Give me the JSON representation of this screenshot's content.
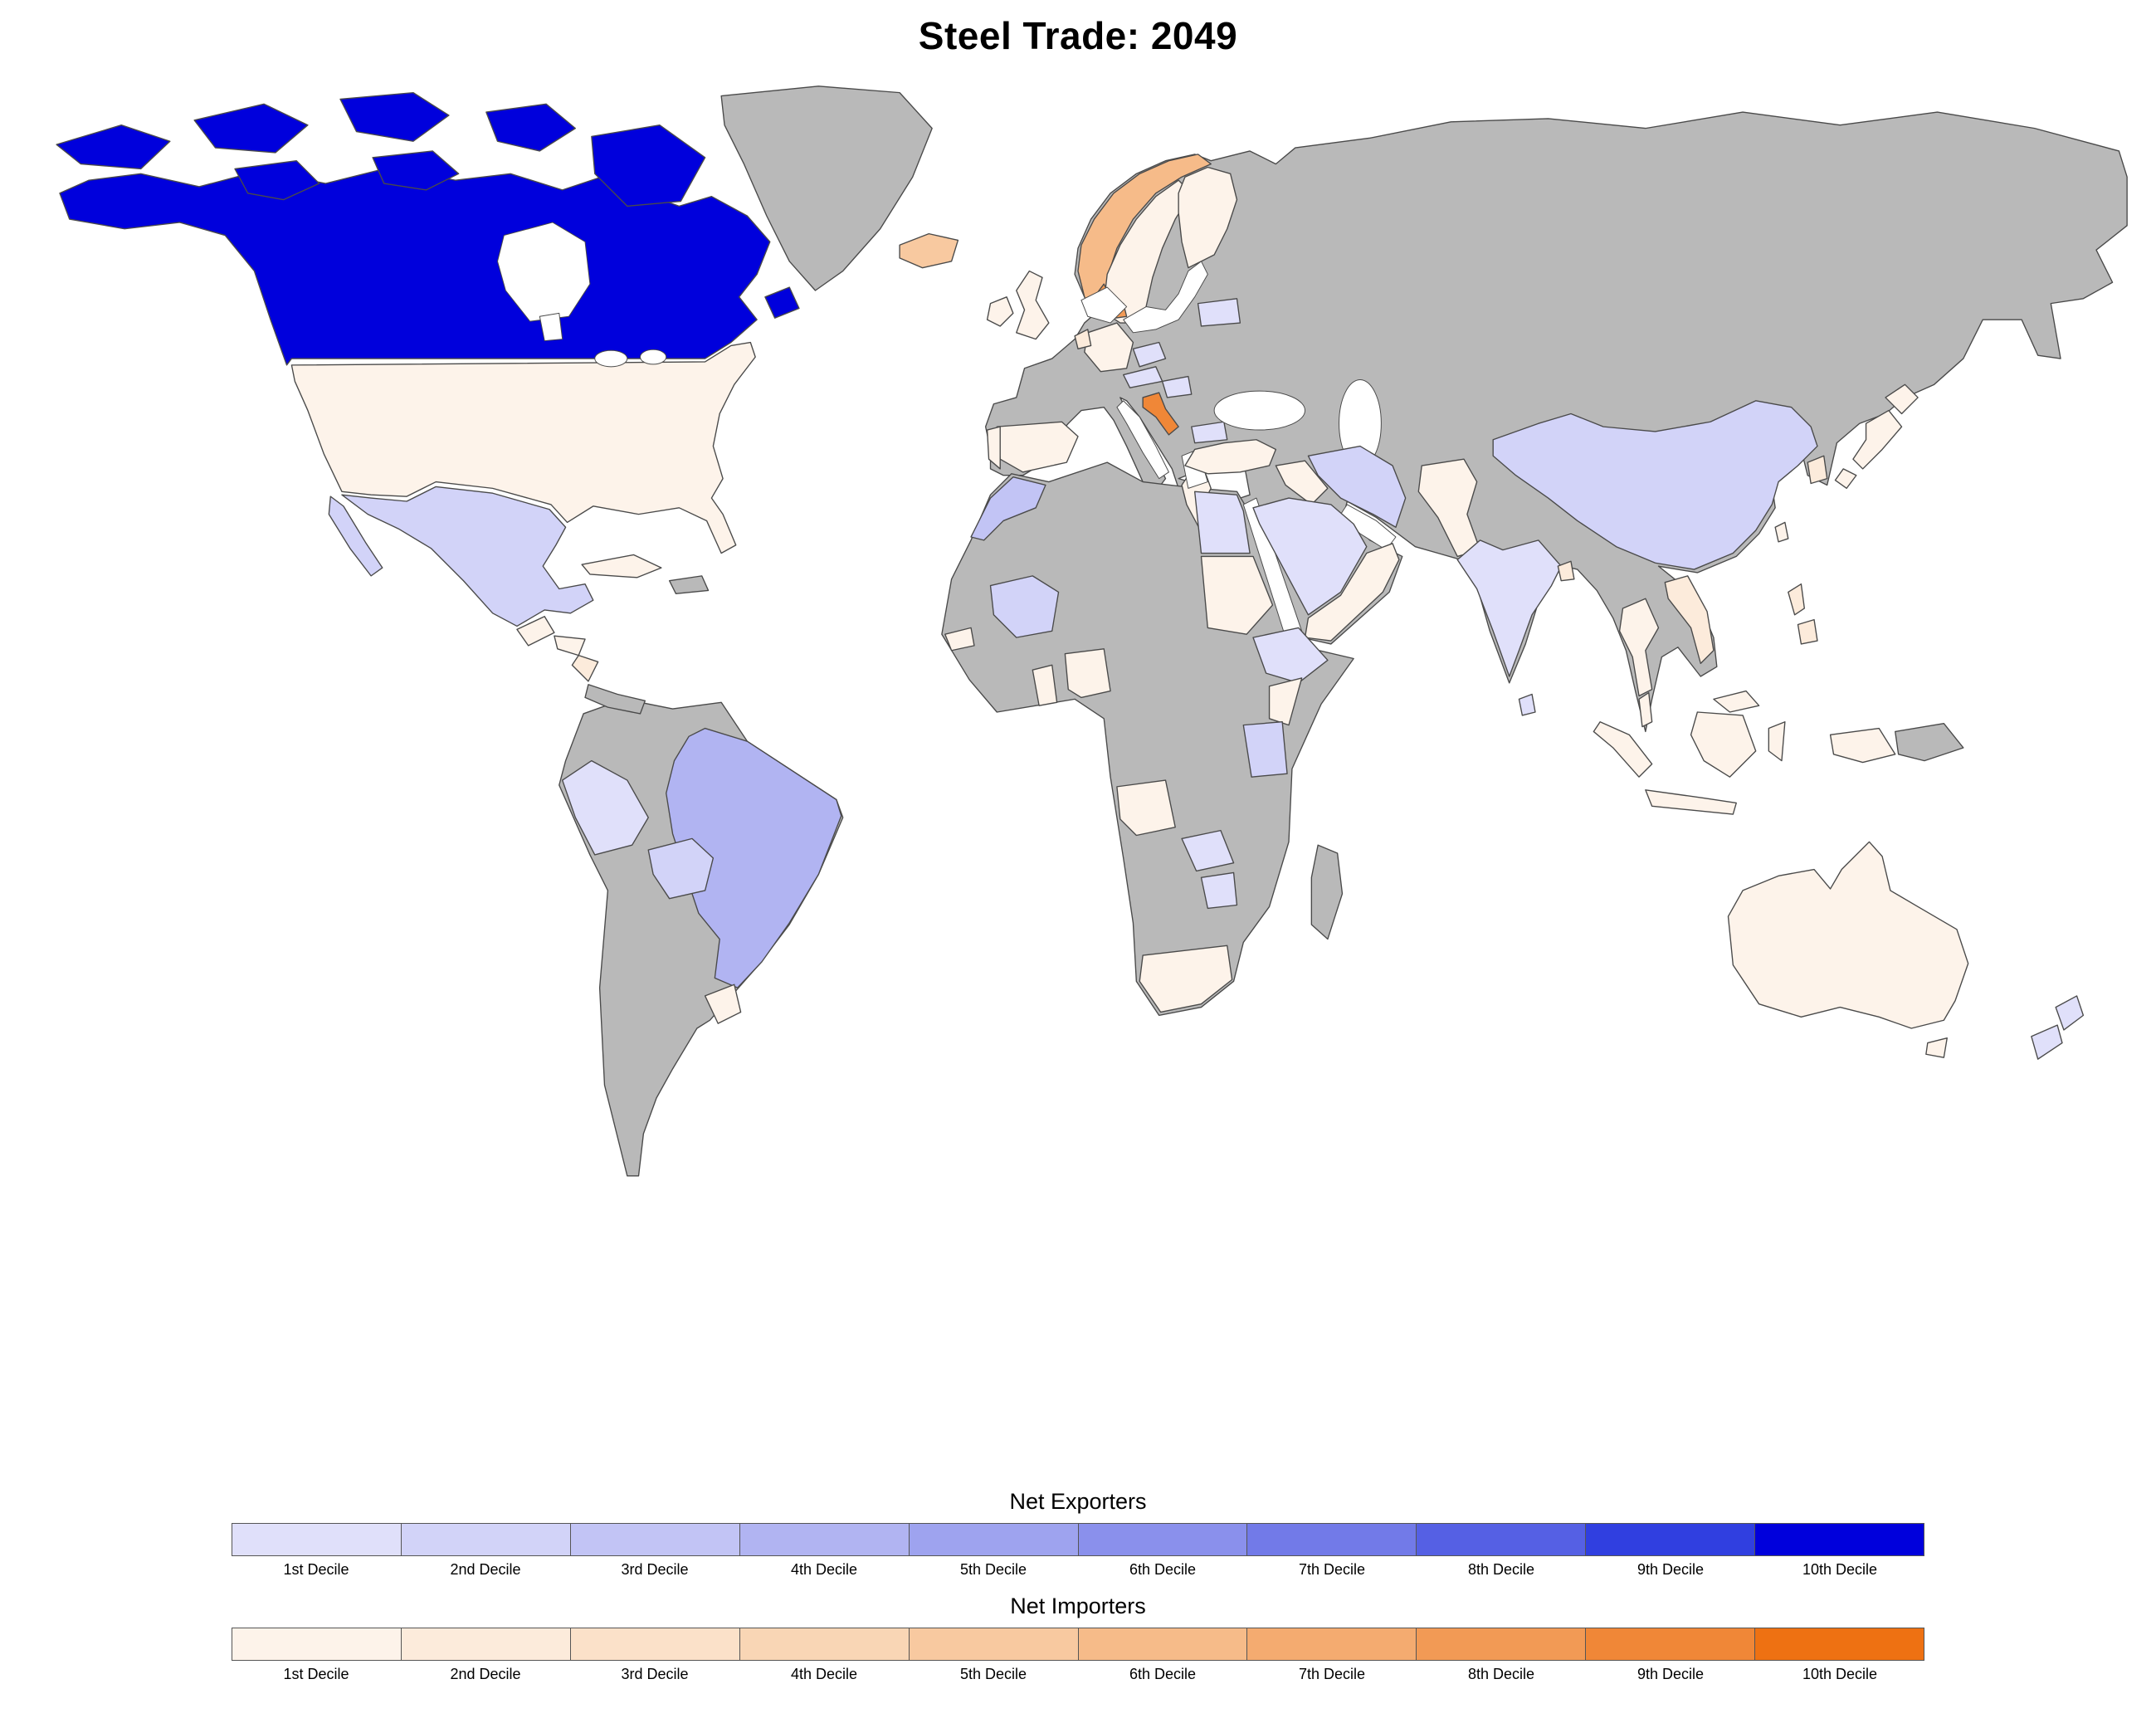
{
  "title": "Steel Trade: 2049",
  "map": {
    "no_data_color": "#b9b9b9",
    "ocean_color": "#ffffff",
    "border_color": "#4a4a4a"
  },
  "legend": {
    "sections": [
      {
        "id": "exporters",
        "title": "Net Exporters",
        "colors": [
          "#e0e0fa",
          "#d2d3f8",
          "#c2c4f5",
          "#b1b4f2",
          "#9ea3ef",
          "#8a90ec",
          "#727ae8",
          "#5560e4",
          "#303fe0",
          "#0000dc"
        ],
        "labels": [
          "1st Decile",
          "2nd Decile",
          "3rd Decile",
          "4th Decile",
          "5th Decile",
          "6th Decile",
          "7th Decile",
          "8th Decile",
          "9th Decile",
          "10th Decile"
        ]
      },
      {
        "id": "importers",
        "title": "Net Importers",
        "colors": [
          "#fdf3ea",
          "#fcebdb",
          "#fbe1c9",
          "#f9d6b5",
          "#f8c9a0",
          "#f6bb89",
          "#f4ab70",
          "#f29a55",
          "#f08737",
          "#ee7112"
        ],
        "labels": [
          "1st Decile",
          "2nd Decile",
          "3rd Decile",
          "4th Decile",
          "5th Decile",
          "6th Decile",
          "7th Decile",
          "8th Decile",
          "9th Decile",
          "10th Decile"
        ]
      }
    ]
  },
  "countries": {
    "greenland": {
      "label": "Greenland",
      "type": "none",
      "decile": null
    },
    "eurasia": {
      "label": "Eurasia (no data regions)",
      "type": "none",
      "decile": null
    },
    "africa": {
      "label": "Africa (no data regions)",
      "type": "none",
      "decile": null
    },
    "madagascar": {
      "label": "Madagascar",
      "type": "none",
      "decile": null
    },
    "south_america": {
      "label": "South America (no data regions)",
      "type": "none",
      "decile": null
    },
    "panama_cr": {
      "label": "Costa Rica / Panama",
      "type": "none",
      "decile": null
    },
    "hispaniola": {
      "label": "Hispaniola",
      "type": "none",
      "decile": null
    },
    "papua_new_guinea": {
      "label": "Papua New Guinea",
      "type": "none",
      "decile": null
    },
    "canada": {
      "label": "Canada",
      "type": "exporter",
      "decile": 10
    },
    "mexico": {
      "label": "Mexico",
      "type": "exporter",
      "decile": 2
    },
    "peru": {
      "label": "Peru",
      "type": "exporter",
      "decile": 1
    },
    "bolivia": {
      "label": "Bolivia",
      "type": "exporter",
      "decile": 2
    },
    "brazil": {
      "label": "Brazil",
      "type": "exporter",
      "decile": 4
    },
    "new_zealand": {
      "label": "New Zealand",
      "type": "exporter",
      "decile": 1
    },
    "morocco": {
      "label": "Morocco",
      "type": "exporter",
      "decile": 3
    },
    "mali": {
      "label": "Mali",
      "type": "exporter",
      "decile": 2
    },
    "egypt": {
      "label": "Egypt",
      "type": "exporter",
      "decile": 1
    },
    "ethiopia": {
      "label": "Ethiopia",
      "type": "exporter",
      "decile": 1
    },
    "tanzania": {
      "label": "Tanzania",
      "type": "exporter",
      "decile": 2
    },
    "zambia": {
      "label": "Zambia",
      "type": "exporter",
      "decile": 1
    },
    "zimbabwe": {
      "label": "Zimbabwe",
      "type": "exporter",
      "decile": 1
    },
    "czechia": {
      "label": "Czechia",
      "type": "exporter",
      "decile": 1
    },
    "austria": {
      "label": "Austria",
      "type": "exporter",
      "decile": 1
    },
    "hungary": {
      "label": "Hungary",
      "type": "exporter",
      "decile": 1
    },
    "bulgaria": {
      "label": "Bulgaria",
      "type": "exporter",
      "decile": 1
    },
    "belarus": {
      "label": "Belarus",
      "type": "exporter",
      "decile": 1
    },
    "iran": {
      "label": "Iran",
      "type": "exporter",
      "decile": 2
    },
    "saudi_arabia": {
      "label": "Saudi Arabia",
      "type": "exporter",
      "decile": 1
    },
    "india": {
      "label": "India",
      "type": "exporter",
      "decile": 1
    },
    "sri_lanka": {
      "label": "Sri Lanka",
      "type": "exporter",
      "decile": 1
    },
    "china": {
      "label": "China",
      "type": "exporter",
      "decile": 2
    },
    "usa": {
      "label": "United States",
      "type": "importer",
      "decile": 1
    },
    "guatemala": {
      "label": "Guatemala",
      "type": "importer",
      "decile": 1
    },
    "honduras": {
      "label": "Honduras",
      "type": "importer",
      "decile": 1
    },
    "nicaragua": {
      "label": "Nicaragua",
      "type": "importer",
      "decile": 2
    },
    "cuba": {
      "label": "Cuba",
      "type": "importer",
      "decile": 1
    },
    "uruguay": {
      "label": "Uruguay",
      "type": "importer",
      "decile": 1
    },
    "iceland": {
      "label": "Iceland",
      "type": "importer",
      "decile": 5
    },
    "norway": {
      "label": "Norway",
      "type": "importer",
      "decile": 6
    },
    "sweden": {
      "label": "Sweden",
      "type": "importer",
      "decile": 1
    },
    "finland": {
      "label": "Finland",
      "type": "importer",
      "decile": 1
    },
    "denmark": {
      "label": "Denmark",
      "type": "importer",
      "decile": 8
    },
    "uk": {
      "label": "United Kingdom",
      "type": "importer",
      "decile": 1
    },
    "ireland": {
      "label": "Ireland",
      "type": "importer",
      "decile": 1
    },
    "germany": {
      "label": "Germany",
      "type": "importer",
      "decile": 1
    },
    "netherlands": {
      "label": "Netherlands",
      "type": "importer",
      "decile": 2
    },
    "spain": {
      "label": "Spain",
      "type": "importer",
      "decile": 1
    },
    "portugal": {
      "label": "Portugal",
      "type": "importer",
      "decile": 1
    },
    "croatia": {
      "label": "Croatia",
      "type": "importer",
      "decile": 9
    },
    "greece": {
      "label": "Greece",
      "type": "importer",
      "decile": 1
    },
    "turkey": {
      "label": "Turkey",
      "type": "importer",
      "decile": 1
    },
    "iraq": {
      "label": "Iraq",
      "type": "importer",
      "decile": 1
    },
    "yemen_oman": {
      "label": "Yemen / Oman",
      "type": "importer",
      "decile": 1
    },
    "pakistan": {
      "label": "Pakistan",
      "type": "importer",
      "decile": 1
    },
    "bangladesh": {
      "label": "Bangladesh",
      "type": "importer",
      "decile": 2
    },
    "thailand": {
      "label": "Thailand",
      "type": "importer",
      "decile": 1
    },
    "vietnam": {
      "label": "Vietnam",
      "type": "importer",
      "decile": 2
    },
    "malaysia": {
      "label": "Malaysia",
      "type": "importer",
      "decile": 1
    },
    "south_korea": {
      "label": "South Korea",
      "type": "importer",
      "decile": 2
    },
    "japan": {
      "label": "Japan",
      "type": "importer",
      "decile": 1
    },
    "taiwan": {
      "label": "Taiwan",
      "type": "importer",
      "decile": 1
    },
    "philippines": {
      "label": "Philippines",
      "type": "importer",
      "decile": 2
    },
    "indonesia": {
      "label": "Indonesia",
      "type": "importer",
      "decile": 1
    },
    "australia": {
      "label": "Australia",
      "type": "importer",
      "decile": 1
    },
    "senegal": {
      "label": "Senegal",
      "type": "importer",
      "decile": 1
    },
    "ghana": {
      "label": "Ghana",
      "type": "importer",
      "decile": 1
    },
    "nigeria": {
      "label": "Nigeria",
      "type": "importer",
      "decile": 1
    },
    "sudan": {
      "label": "Sudan",
      "type": "importer",
      "decile": 1
    },
    "kenya": {
      "label": "Kenya",
      "type": "importer",
      "decile": 1
    },
    "angola": {
      "label": "Angola",
      "type": "importer",
      "decile": 1
    },
    "south_africa": {
      "label": "South Africa",
      "type": "importer",
      "decile": 1
    }
  }
}
